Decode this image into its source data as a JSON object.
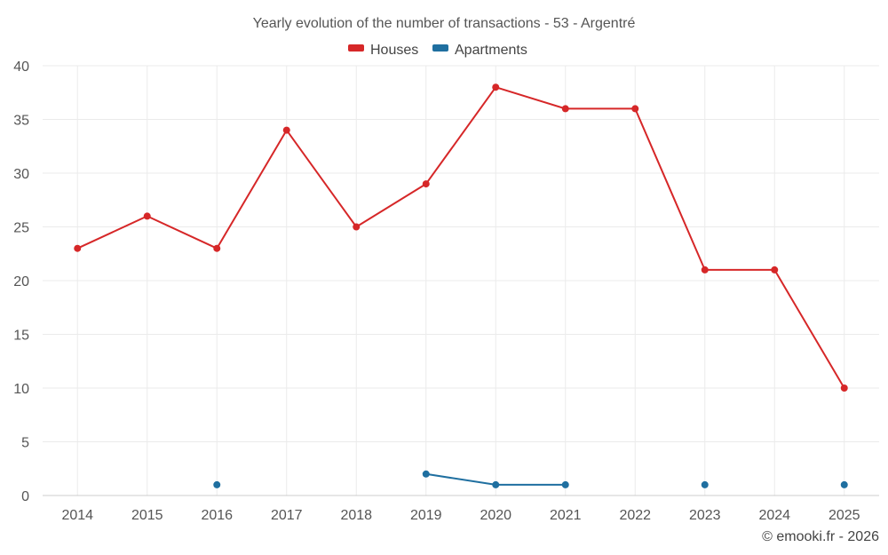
{
  "chart_data": {
    "type": "line",
    "title": "Yearly evolution of the number of transactions - 53 - Argentré",
    "xlabel": "",
    "ylabel": "",
    "categories": [
      "2014",
      "2015",
      "2016",
      "2017",
      "2018",
      "2019",
      "2020",
      "2021",
      "2022",
      "2023",
      "2024",
      "2025"
    ],
    "ylim": [
      0,
      40
    ],
    "yticks": [
      0,
      5,
      10,
      15,
      20,
      25,
      30,
      35,
      40
    ],
    "grid": true,
    "legend_position": "top-center",
    "series": [
      {
        "name": "Houses",
        "color": "#d62728",
        "values": [
          23,
          26,
          23,
          34,
          25,
          29,
          38,
          36,
          36,
          21,
          21,
          10
        ]
      },
      {
        "name": "Apartments",
        "color": "#1f6fa0",
        "values": [
          null,
          null,
          1,
          null,
          null,
          2,
          1,
          1,
          null,
          1,
          null,
          1
        ]
      }
    ]
  },
  "credit": "© emooki.fr - 2026"
}
